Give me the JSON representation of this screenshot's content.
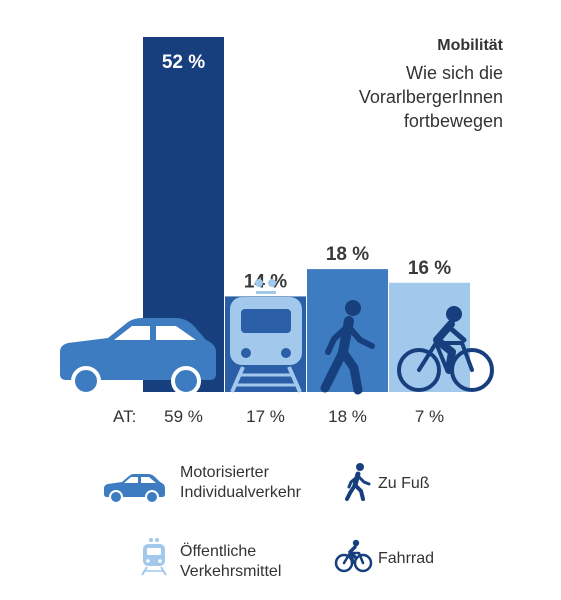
{
  "chart_data": {
    "type": "bar",
    "title": "Mobilität",
    "subtitle_lines": [
      "Wie sich die",
      "VorarlbergerInnen",
      "fortbewegen"
    ],
    "categories": [
      "Motorisierter Individualverkehr",
      "Öffentliche Verkehrsmittel",
      "Zu Fuß",
      "Fahrrad"
    ],
    "values": [
      52,
      14,
      18,
      16
    ],
    "value_labels": [
      "52 %",
      "14 %",
      "18 %",
      "16 %"
    ],
    "unit": "%",
    "colors": [
      "#173f7d",
      "#2a5ea7",
      "#3d7cc0",
      "#a2c8ec"
    ],
    "comparison": {
      "label": "AT:",
      "values": [
        59,
        17,
        18,
        7
      ],
      "value_labels": [
        "59 %",
        "17 %",
        "18 %",
        "7 %"
      ]
    },
    "legend": {
      "items": [
        {
          "lines": [
            "Motorisierter",
            "Individualverkehr"
          ],
          "icon": "car-icon",
          "color": "#3d7cc0"
        },
        {
          "lines": [
            "Zu Fuß"
          ],
          "icon": "pedestrian-icon",
          "color": "#173f7d"
        },
        {
          "lines": [
            "Öffentliche",
            "Verkehrsmittel"
          ],
          "icon": "train-icon",
          "color": "#a2c8ec"
        },
        {
          "lines": [
            "Fahrrad"
          ],
          "icon": "bicycle-icon",
          "color": "#173f7d"
        }
      ]
    }
  }
}
